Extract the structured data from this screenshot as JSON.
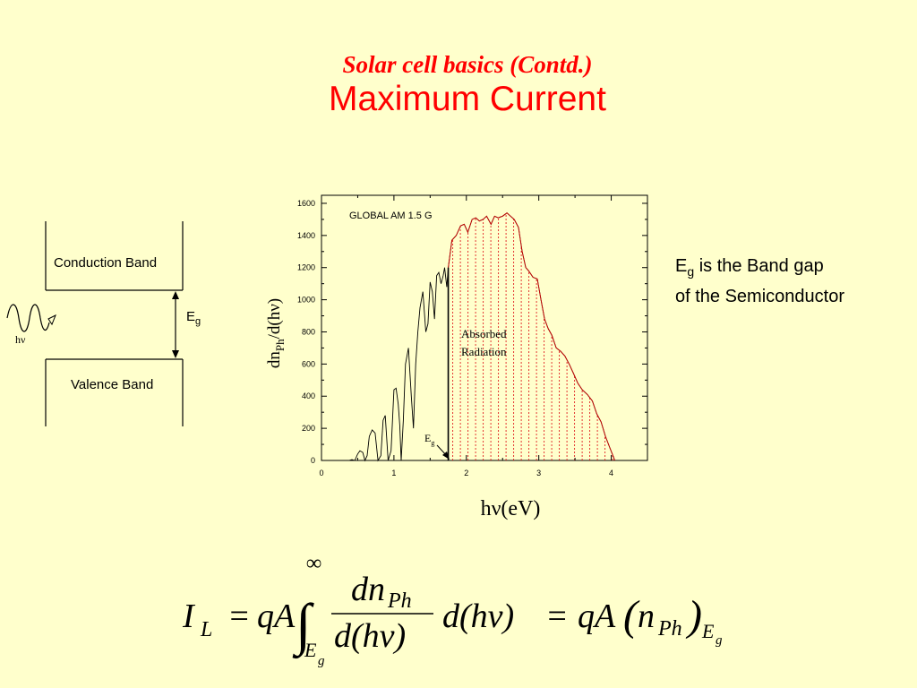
{
  "slide": {
    "subtitle": "Solar cell basics (Contd.)",
    "title": "Maximum Current"
  },
  "band_diagram": {
    "conduction_label": "Conduction Band",
    "valence_label": "Valence Band",
    "gap_label_main": "E",
    "gap_label_sub": "g",
    "photon_label": "hν"
  },
  "note": {
    "eg_main": "E",
    "eg_sub": "g",
    "line1_rest": " is the Band gap",
    "line2": "of the Semiconductor"
  },
  "chart_data": {
    "type": "area",
    "title": "GLOBAL AM 1.5 G",
    "xlabel": "hν(eV)",
    "ylabel_main": "dn",
    "ylabel_sub": "Ph",
    "ylabel_rest": "/d(hν)",
    "xlim": [
      0,
      4.5
    ],
    "ylim": [
      0,
      1650
    ],
    "x_ticks": [
      "0",
      "1",
      "2",
      "3",
      "4"
    ],
    "y_ticks": [
      "0",
      "200",
      "400",
      "600",
      "800",
      "1000",
      "1200",
      "1400",
      "1600"
    ],
    "bandgap_ev": 1.75,
    "bandgap_label_main": "E",
    "bandgap_label_sub": "g",
    "region_label_line1": "Absorbed",
    "region_label_line2": "Radiation",
    "grid": false,
    "spectrum": {
      "x": [
        0.3,
        0.38,
        0.42,
        0.46,
        0.5,
        0.53,
        0.57,
        0.6,
        0.63,
        0.66,
        0.7,
        0.74,
        0.78,
        0.82,
        0.85,
        0.88,
        0.92,
        0.96,
        1.0,
        1.03,
        1.06,
        1.08,
        1.1,
        1.13,
        1.16,
        1.2,
        1.24,
        1.27,
        1.3,
        1.33,
        1.36,
        1.4,
        1.44,
        1.47,
        1.5,
        1.53,
        1.56,
        1.59,
        1.62,
        1.65,
        1.68,
        1.7,
        1.73,
        1.75,
        1.8,
        1.86,
        1.92,
        1.97,
        2.02,
        2.08,
        2.13,
        2.18,
        2.23,
        2.28,
        2.34,
        2.39,
        2.44,
        2.5,
        2.56,
        2.61,
        2.66,
        2.72,
        2.77,
        2.82,
        2.86,
        2.92,
        2.98,
        3.03,
        3.08,
        3.13,
        3.18,
        3.24,
        3.3,
        3.36,
        3.42,
        3.48,
        3.54,
        3.6,
        3.67,
        3.74,
        3.8,
        3.86,
        3.92,
        3.98,
        4.05
      ],
      "y": [
        0,
        0,
        5,
        0,
        40,
        60,
        50,
        0,
        30,
        150,
        190,
        170,
        0,
        30,
        250,
        280,
        0,
        60,
        440,
        450,
        350,
        220,
        0,
        250,
        600,
        700,
        400,
        200,
        600,
        800,
        950,
        1050,
        800,
        850,
        1110,
        1050,
        880,
        1150,
        1170,
        1100,
        1150,
        1200,
        1080,
        1200,
        1370,
        1400,
        1460,
        1470,
        1420,
        1500,
        1510,
        1490,
        1500,
        1520,
        1470,
        1520,
        1510,
        1520,
        1540,
        1520,
        1500,
        1450,
        1300,
        1200,
        1180,
        1140,
        1130,
        1000,
        880,
        820,
        780,
        700,
        680,
        650,
        600,
        540,
        480,
        440,
        410,
        370,
        290,
        240,
        150,
        80,
        0
      ]
    }
  },
  "formula": {
    "I": "I",
    "L_sub": "L",
    "eq1": "=",
    "qA1": "qA",
    "integral": "∫",
    "upper": "∞",
    "lower_E": "E",
    "lower_g": "g",
    "num_dn": "dn",
    "num_Ph": "Ph",
    "den": "d(hν)",
    "dhv": "d(hν)",
    "eq2": "=",
    "qA2": "qA",
    "paren_open": "(",
    "n": "n",
    "n_Ph": "Ph",
    "paren_close": ")",
    "E_sub": "E",
    "g_sub": "g"
  }
}
